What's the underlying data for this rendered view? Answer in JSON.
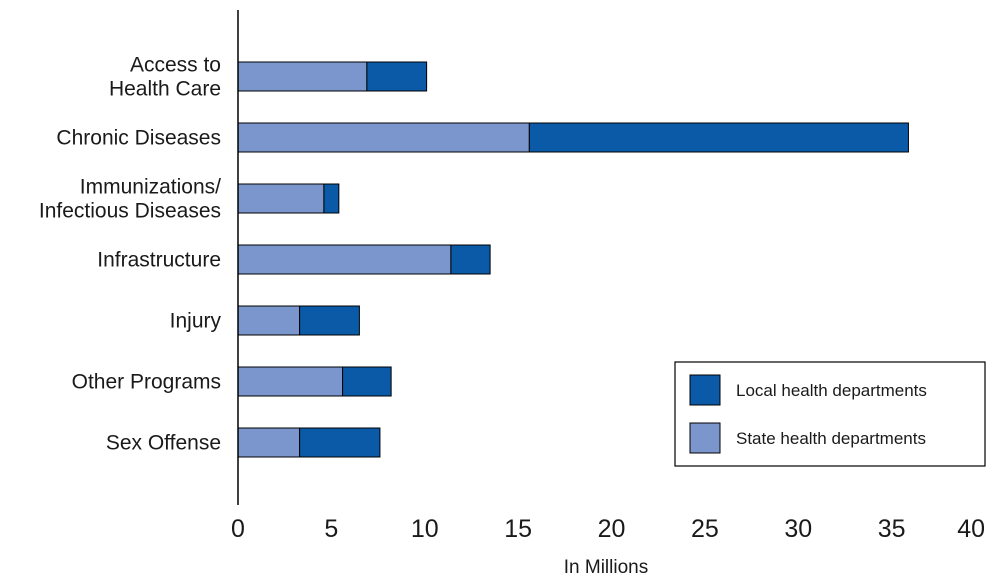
{
  "chart_data": {
    "type": "bar",
    "orientation": "horizontal",
    "stacked": true,
    "categories": [
      [
        "Access to",
        "Health Care"
      ],
      [
        "Chronic Diseases"
      ],
      [
        "Immunizations/",
        "Infectious Diseases"
      ],
      [
        "Infrastructure"
      ],
      [
        "Injury"
      ],
      [
        "Other Programs"
      ],
      [
        "Sex Offense"
      ]
    ],
    "series": [
      {
        "name": "State health departments",
        "color": "#7b96cc",
        "values": [
          6.9,
          15.6,
          4.6,
          11.4,
          3.3,
          5.6,
          3.3
        ]
      },
      {
        "name": "Local health departments",
        "color": "#0a5aa8",
        "values": [
          3.2,
          20.3,
          0.8,
          2.1,
          3.2,
          2.6,
          4.3
        ]
      }
    ],
    "xlabel": "In Millions",
    "ylabel": "",
    "title": "",
    "xlim": [
      0,
      40
    ],
    "xticks": [
      "0",
      "5",
      "10",
      "15",
      "20",
      "25",
      "30",
      "35",
      "40"
    ],
    "grid": false,
    "legend": {
      "placement": "bottom-right",
      "entries": [
        "Local health departments",
        "State health departments"
      ]
    }
  }
}
